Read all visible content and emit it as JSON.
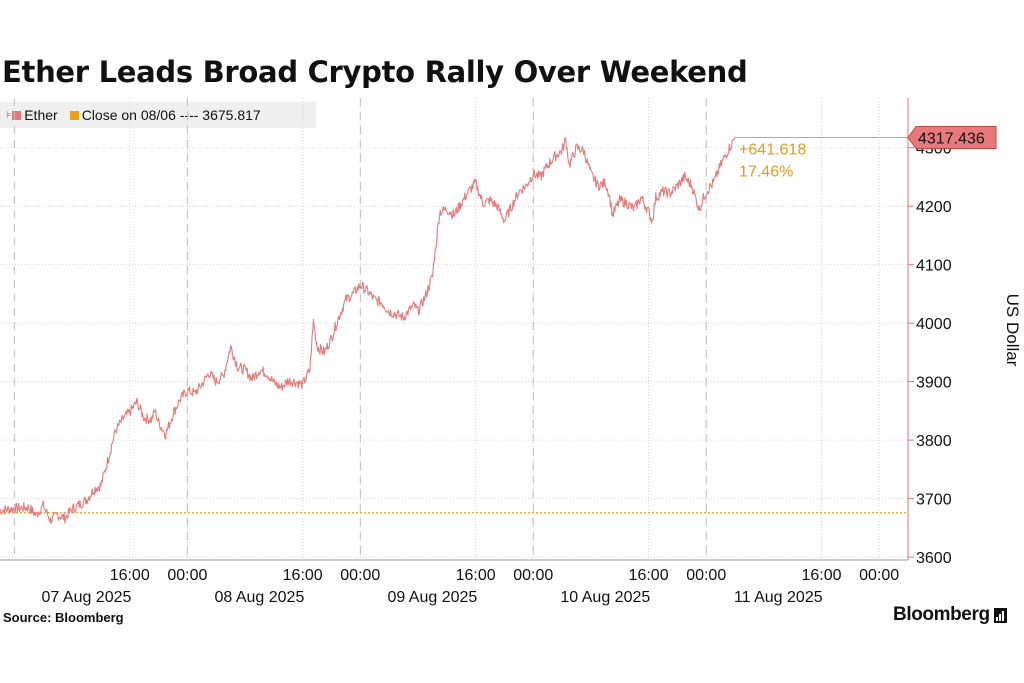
{
  "title": "Ether Leads Broad Crypto Rally Over Weekend",
  "legend": {
    "series_label": "Ether",
    "series_color": "#e8797a",
    "close_label": "Close on 08/06 ---- 3675.817",
    "close_color": "#e8a317"
  },
  "source": "Source: Bloomberg",
  "brand": "Bloomberg",
  "chart_data": {
    "type": "line",
    "title": "Ether Leads Broad Crypto Rally Over Weekend",
    "ylabel": "US Dollar",
    "ylim": [
      3595,
      4385
    ],
    "yticks": [
      3600,
      3700,
      3800,
      3900,
      4000,
      4100,
      4200,
      4300
    ],
    "x_range_hours": [
      -2,
      124
    ],
    "xtick_time_labels": [
      {
        "h": 16,
        "label": "16:00"
      },
      {
        "h": 24,
        "label": "00:00"
      },
      {
        "h": 40,
        "label": "16:00"
      },
      {
        "h": 48,
        "label": "00:00"
      },
      {
        "h": 64,
        "label": "16:00"
      },
      {
        "h": 72,
        "label": "00:00"
      },
      {
        "h": 88,
        "label": "16:00"
      },
      {
        "h": 96,
        "label": "00:00"
      },
      {
        "h": 112,
        "label": "16:00"
      },
      {
        "h": 120,
        "label": "00:00"
      }
    ],
    "xtick_date_labels": [
      {
        "h": 10,
        "label": "07 Aug 2025"
      },
      {
        "h": 34,
        "label": "08 Aug 2025"
      },
      {
        "h": 58,
        "label": "09 Aug 2025"
      },
      {
        "h": 82,
        "label": "10 Aug 2025"
      },
      {
        "h": 106,
        "label": "11 Aug 2025"
      }
    ],
    "session_divider_hours": [
      0,
      24,
      48,
      72,
      96
    ],
    "grid": true,
    "legend_position": "top-left",
    "series": [
      {
        "name": "Ether",
        "color": "#e8797a",
        "x": [
          -2,
          0,
          2,
          3,
          4,
          5,
          6,
          7,
          8,
          9,
          10,
          11,
          11.5,
          12,
          13,
          14,
          15,
          16,
          17,
          18,
          19,
          19.5,
          20,
          21,
          22,
          23,
          24,
          25,
          26,
          27,
          28,
          29,
          30,
          31,
          32,
          33,
          34,
          35,
          36,
          37,
          38,
          39,
          40,
          41,
          41.5,
          42,
          43,
          44,
          45,
          46,
          47,
          48,
          49,
          50,
          51,
          52,
          53,
          54,
          55,
          55.5,
          56,
          57,
          58,
          59,
          60,
          61,
          62,
          63,
          64,
          65,
          66,
          67,
          68,
          69,
          70,
          71,
          72,
          73,
          74,
          75,
          76,
          76.5,
          77,
          78,
          79,
          80,
          81,
          82,
          82.5,
          83,
          84,
          85,
          86,
          87,
          88,
          88.5,
          89,
          90,
          91,
          92,
          93,
          94,
          95,
          96,
          97,
          98,
          99,
          100
        ],
        "values": [
          3680,
          3683,
          3685,
          3672,
          3688,
          3663,
          3672,
          3667,
          3682,
          3690,
          3698,
          3715,
          3720,
          3722,
          3768,
          3815,
          3835,
          3848,
          3865,
          3838,
          3835,
          3850,
          3830,
          3810,
          3845,
          3870,
          3885,
          3880,
          3895,
          3915,
          3900,
          3910,
          3960,
          3925,
          3920,
          3905,
          3920,
          3915,
          3898,
          3890,
          3902,
          3900,
          3895,
          3920,
          4005,
          3960,
          3950,
          3975,
          4010,
          4040,
          4050,
          4065,
          4055,
          4040,
          4035,
          4020,
          4015,
          4010,
          4025,
          4030,
          4020,
          4045,
          4080,
          4190,
          4195,
          4185,
          4205,
          4225,
          4240,
          4205,
          4210,
          4200,
          4175,
          4200,
          4225,
          4235,
          4255,
          4250,
          4270,
          4285,
          4295,
          4315,
          4270,
          4300,
          4295,
          4255,
          4235,
          4240,
          4222,
          4185,
          4210,
          4205,
          4195,
          4215,
          4190,
          4175,
          4215,
          4225,
          4222,
          4235,
          4250,
          4235,
          4195,
          4225,
          4240,
          4270,
          4295,
          4317.436
        ]
      }
    ],
    "reference_line": {
      "label": "Close on 08/06",
      "value": 3675.817
    },
    "last_value": 4317.436,
    "change_annotation": {
      "abs": "+641.618",
      "pct": "17.46%"
    }
  }
}
